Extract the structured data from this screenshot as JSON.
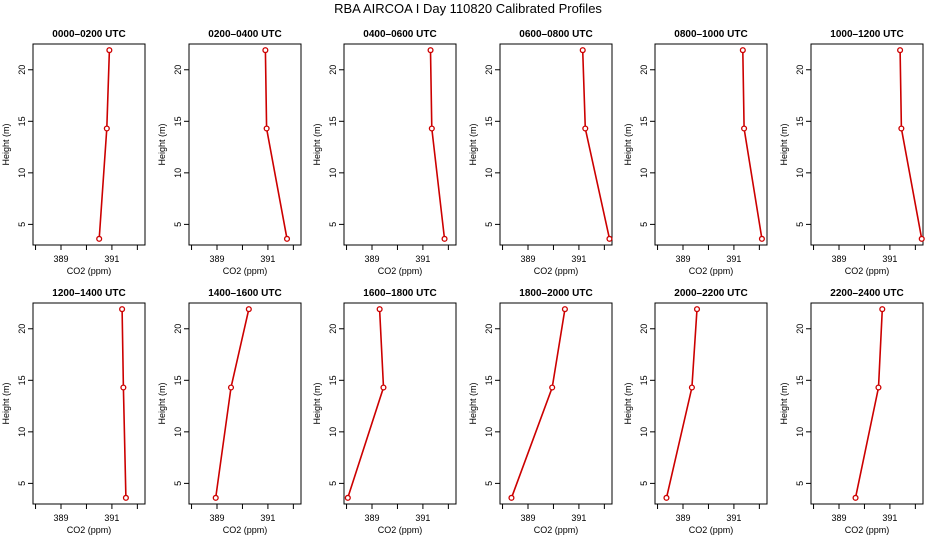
{
  "figure": {
    "suptitle": "RBA AIRCOA I  Day 110820  Calibrated Profiles"
  },
  "style": {
    "line_color": "#cc0000",
    "axis_color": "#000000",
    "background": "#ffffff"
  },
  "chart_data": [
    {
      "type": "line",
      "title": "0000–0200 UTC",
      "xlabel": "CO2 (ppm)",
      "ylabel": "Height (m)",
      "xlim": [
        387.9,
        392.3
      ],
      "ylim": [
        3,
        22.5
      ],
      "xticks": [
        389,
        391
      ],
      "yticks": [
        5,
        10,
        15,
        20
      ],
      "grid": false,
      "series": [
        {
          "x": [
            390.5,
            390.8,
            390.9
          ],
          "y": [
            3.6,
            14.3,
            21.9
          ]
        }
      ]
    },
    {
      "type": "line",
      "title": "0200–0400 UTC",
      "xlabel": "CO2 (ppm)",
      "ylabel": "Height (m)",
      "xlim": [
        387.9,
        392.3
      ],
      "ylim": [
        3,
        22.5
      ],
      "xticks": [
        389,
        391
      ],
      "yticks": [
        5,
        10,
        15,
        20
      ],
      "grid": false,
      "series": [
        {
          "x": [
            391.75,
            390.95,
            390.9
          ],
          "y": [
            3.6,
            14.3,
            21.9
          ]
        }
      ]
    },
    {
      "type": "line",
      "title": "0400–0600 UTC",
      "xlabel": "CO2 (ppm)",
      "ylabel": "Height (m)",
      "xlim": [
        387.9,
        392.3
      ],
      "ylim": [
        3,
        22.5
      ],
      "xticks": [
        389,
        391
      ],
      "yticks": [
        5,
        10,
        15,
        20
      ],
      "grid": false,
      "series": [
        {
          "x": [
            391.85,
            391.35,
            391.3
          ],
          "y": [
            3.6,
            14.3,
            21.9
          ]
        }
      ]
    },
    {
      "type": "line",
      "title": "0600–0800 UTC",
      "xlabel": "CO2 (ppm)",
      "ylabel": "Height (m)",
      "xlim": [
        387.9,
        392.3
      ],
      "ylim": [
        3,
        22.5
      ],
      "xticks": [
        389,
        391
      ],
      "yticks": [
        5,
        10,
        15,
        20
      ],
      "grid": false,
      "series": [
        {
          "x": [
            392.2,
            391.25,
            391.15
          ],
          "y": [
            3.6,
            14.3,
            21.9
          ]
        }
      ]
    },
    {
      "type": "line",
      "title": "0800–1000 UTC",
      "xlabel": "CO2 (ppm)",
      "ylabel": "Height (m)",
      "xlim": [
        387.9,
        392.3
      ],
      "ylim": [
        3,
        22.5
      ],
      "xticks": [
        389,
        391
      ],
      "yticks": [
        5,
        10,
        15,
        20
      ],
      "grid": false,
      "series": [
        {
          "x": [
            392.1,
            391.4,
            391.35
          ],
          "y": [
            3.6,
            14.3,
            21.9
          ]
        }
      ]
    },
    {
      "type": "line",
      "title": "1000–1200 UTC",
      "xlabel": "CO2 (ppm)",
      "ylabel": "Height (m)",
      "xlim": [
        387.9,
        392.3
      ],
      "ylim": [
        3,
        22.5
      ],
      "xticks": [
        389,
        391
      ],
      "yticks": [
        5,
        10,
        15,
        20
      ],
      "grid": false,
      "series": [
        {
          "x": [
            392.25,
            391.45,
            391.4
          ],
          "y": [
            3.6,
            14.3,
            21.9
          ]
        }
      ]
    },
    {
      "type": "line",
      "title": "1200–1400 UTC",
      "xlabel": "CO2 (ppm)",
      "ylabel": "Height (m)",
      "xlim": [
        387.9,
        392.3
      ],
      "ylim": [
        3,
        22.5
      ],
      "xticks": [
        389,
        391
      ],
      "yticks": [
        5,
        10,
        15,
        20
      ],
      "grid": false,
      "series": [
        {
          "x": [
            391.55,
            391.45,
            391.4
          ],
          "y": [
            3.6,
            14.3,
            21.9
          ]
        }
      ]
    },
    {
      "type": "line",
      "title": "1400–1600 UTC",
      "xlabel": "CO2 (ppm)",
      "ylabel": "Height (m)",
      "xlim": [
        387.9,
        392.3
      ],
      "ylim": [
        3,
        22.5
      ],
      "xticks": [
        389,
        391
      ],
      "yticks": [
        5,
        10,
        15,
        20
      ],
      "grid": false,
      "series": [
        {
          "x": [
            388.95,
            389.55,
            390.25
          ],
          "y": [
            3.6,
            14.3,
            21.9
          ]
        }
      ]
    },
    {
      "type": "line",
      "title": "1600–1800 UTC",
      "xlabel": "CO2 (ppm)",
      "ylabel": "Height (m)",
      "xlim": [
        387.9,
        392.3
      ],
      "ylim": [
        3,
        22.5
      ],
      "xticks": [
        389,
        391
      ],
      "yticks": [
        5,
        10,
        15,
        20
      ],
      "grid": false,
      "series": [
        {
          "x": [
            388.05,
            389.45,
            389.3
          ],
          "y": [
            3.6,
            14.3,
            21.9
          ]
        }
      ]
    },
    {
      "type": "line",
      "title": "1800–2000 UTC",
      "xlabel": "CO2 (ppm)",
      "ylabel": "Height (m)",
      "xlim": [
        387.9,
        392.3
      ],
      "ylim": [
        3,
        22.5
      ],
      "xticks": [
        389,
        391
      ],
      "yticks": [
        5,
        10,
        15,
        20
      ],
      "grid": false,
      "series": [
        {
          "x": [
            388.35,
            389.95,
            390.45
          ],
          "y": [
            3.6,
            14.3,
            21.9
          ]
        }
      ]
    },
    {
      "type": "line",
      "title": "2000–2200 UTC",
      "xlabel": "CO2 (ppm)",
      "ylabel": "Height (m)",
      "xlim": [
        387.9,
        392.3
      ],
      "ylim": [
        3,
        22.5
      ],
      "xticks": [
        389,
        391
      ],
      "yticks": [
        5,
        10,
        15,
        20
      ],
      "grid": false,
      "series": [
        {
          "x": [
            388.35,
            389.35,
            389.55
          ],
          "y": [
            3.6,
            14.3,
            21.9
          ]
        }
      ]
    },
    {
      "type": "line",
      "title": "2200–2400 UTC",
      "xlabel": "CO2 (ppm)",
      "ylabel": "Height (m)",
      "xlim": [
        387.9,
        392.3
      ],
      "ylim": [
        3,
        22.5
      ],
      "xticks": [
        389,
        391
      ],
      "yticks": [
        5,
        10,
        15,
        20
      ],
      "grid": false,
      "series": [
        {
          "x": [
            389.65,
            390.55,
            390.7
          ],
          "y": [
            3.6,
            14.3,
            21.9
          ]
        }
      ]
    }
  ]
}
